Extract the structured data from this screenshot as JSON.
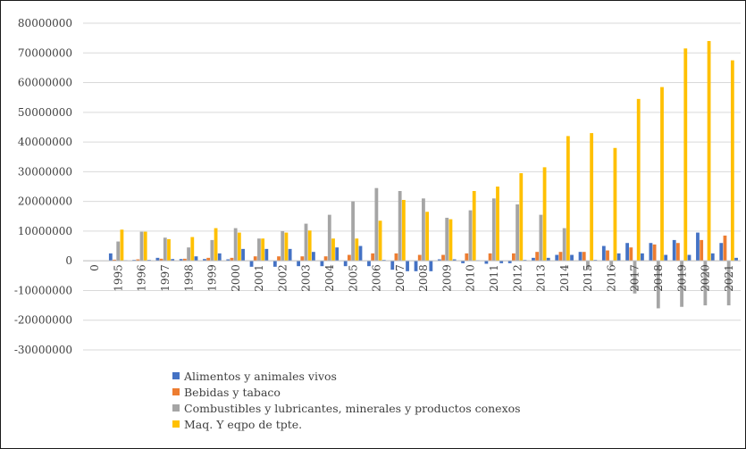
{
  "chart_data": {
    "type": "bar",
    "title": "",
    "xlabel": "",
    "ylabel": "",
    "ylim": [
      -30000000,
      80000000
    ],
    "yticks": [
      80000000,
      70000000,
      60000000,
      50000000,
      40000000,
      30000000,
      20000000,
      10000000,
      0,
      -10000000,
      -20000000,
      -30000000
    ],
    "ytick_labels": [
      "80000000",
      "70000000",
      "60000000",
      "50000000",
      "40000000",
      "30000000",
      "20000000",
      "10000000",
      "0",
      "-10000000",
      "-20000000",
      "-30000000"
    ],
    "grid": true,
    "legend_position": "bottom",
    "categories": [
      "0",
      "1995",
      "1996",
      "1997",
      "1998",
      "1999",
      "2000",
      "2001",
      "2002",
      "2003",
      "2004",
      "2005",
      "2006",
      "2007",
      "2008",
      "2009",
      "2010",
      "2011",
      "2012",
      "2013",
      "2014",
      "2015",
      "2016",
      "2017",
      "2018",
      "2019",
      "2020",
      "2021"
    ],
    "series": [
      {
        "name": "Alimentos y animales vivos",
        "color": "#4472c4",
        "values": [
          0,
          2500000,
          300000,
          1000000,
          600000,
          600000,
          500000,
          -2000000,
          -2000000,
          -1800000,
          -1800000,
          -1800000,
          -1800000,
          -3000000,
          -3500000,
          500000,
          -800000,
          -1000000,
          -800000,
          1000000,
          2000000,
          3000000,
          5000000,
          6000000,
          6000000,
          7000000,
          9500000,
          6000000
        ]
      },
      {
        "name": "Bebidas y tabaco",
        "color": "#ed7d31",
        "values": [
          0,
          400000,
          500000,
          700000,
          700000,
          1000000,
          1000000,
          1500000,
          1500000,
          1500000,
          1500000,
          2000000,
          2500000,
          2500000,
          2000000,
          2000000,
          2500000,
          2500000,
          2500000,
          3000000,
          3000000,
          3000000,
          3500000,
          4500000,
          5500000,
          6000000,
          7000000,
          8500000
        ]
      },
      {
        "name": "Combustibles y lubricantes, minerales y productos conexos",
        "color": "#a5a5a5",
        "values": [
          0,
          6500000,
          9800000,
          7800000,
          4500000,
          7000000,
          11000000,
          7500000,
          10000000,
          12500000,
          15500000,
          20000000,
          24500000,
          23500000,
          21000000,
          14500000,
          17000000,
          21000000,
          19000000,
          15500000,
          11000000,
          -3000000,
          -1500000,
          -11000000,
          -16000000,
          -15500000,
          -15000000,
          -15000000
        ]
      },
      {
        "name": "Maq. Y eqpo de tpte.",
        "color": "#ffc000",
        "values": [
          0,
          10500000,
          9800000,
          7300000,
          8000000,
          11000000,
          9500000,
          7500000,
          9500000,
          10200000,
          7500000,
          7500000,
          13500000,
          20500000,
          16500000,
          14000000,
          23500000,
          25000000,
          29500000,
          31500000,
          42000000,
          43000000,
          38000000,
          54500000,
          58500000,
          71500000,
          74000000,
          67500000
        ]
      },
      {
        "name": "",
        "color": "#4472c4",
        "values": [
          0,
          200000,
          300000,
          600000,
          1500000,
          2500000,
          4000000,
          4000000,
          4000000,
          3000000,
          4500000,
          5000000,
          300000,
          -3500000,
          -3500000,
          500000,
          200000,
          -800000,
          300000,
          1000000,
          2000000,
          300000,
          2500000,
          2500000,
          2000000,
          2000000,
          2500000,
          1000000
        ]
      }
    ]
  }
}
